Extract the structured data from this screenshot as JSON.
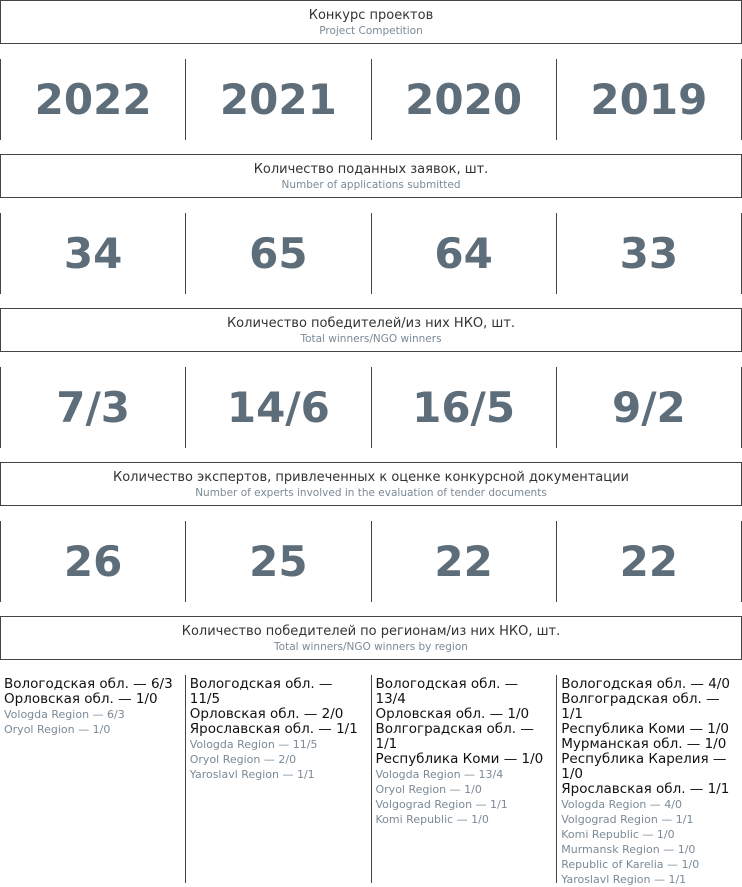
{
  "header": {
    "title": "Конкурс проектов",
    "subtitle": "Project Competition"
  },
  "years": [
    2022,
    2021,
    2020,
    2019
  ],
  "sections": [
    {
      "title": "Количество поданных заявок, шт.",
      "subtitle": "Number of applications submitted",
      "values": [
        34,
        65,
        64,
        33
      ]
    },
    {
      "title": "Количество победителей/из них НКО, шт.",
      "subtitle": "Total winners/NGO winners",
      "values": [
        "7/3",
        "14/6",
        "16/5",
        "9/2"
      ]
    },
    {
      "title": "Количество экспертов, привлеченных к оценке конкурсной документации",
      "subtitle": "Number of experts involved in the evaluation of tender documents",
      "values": [
        26,
        25,
        22,
        22
      ]
    }
  ],
  "regions": {
    "title": "Количество победителей по регионам/из них НКО, шт.",
    "subtitle": "Total winners/NGO winners by region",
    "columns": [
      {
        "ru": [
          "Вологодская обл. — 6/3",
          "Орловская обл. — 1/0"
        ],
        "en": [
          "Vologda Region — 6/3",
          "Oryol Region — 1/0"
        ]
      },
      {
        "ru": [
          "Вологодская обл. — 11/5",
          "Орловская обл. — 2/0",
          "Ярославская обл. — 1/1"
        ],
        "en": [
          "Vologda Region — 11/5",
          "Oryol Region — 2/0",
          "Yaroslavl Region — 1/1"
        ]
      },
      {
        "ru": [
          "Вологодская обл. — 13/4",
          "Орловская обл. — 1/0",
          "Волгоградская обл. — 1/1",
          "Республика Коми — 1/0"
        ],
        "en": [
          "Vologda Region — 13/4",
          "Oryol Region — 1/0",
          "Volgograd Region — 1/1",
          "Komi Republic — 1/0"
        ]
      },
      {
        "ru": [
          "Вологодская обл. — 4/0",
          "Волгоградская обл. — 1/1",
          "Республика Коми — 1/0",
          "Мурманская обл. — 1/0",
          "Республика Карелия — 1/0",
          "Ярославская обл. — 1/1"
        ],
        "en": [
          "Vologda Region — 4/0",
          "Volgograd Region — 1/1",
          "Komi Republic — 1/0",
          "Murmansk Region — 1/0",
          "Republic of Karelia — 1/0",
          "Yaroslavl Region — 1/1"
        ]
      }
    ]
  }
}
